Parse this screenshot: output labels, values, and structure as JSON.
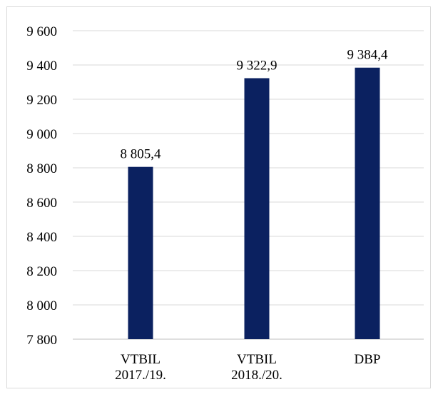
{
  "chart_data": {
    "type": "bar",
    "categories": [
      [
        "VTBIL",
        "2017./19."
      ],
      [
        "VTBIL",
        "2018./20."
      ],
      [
        "DBP"
      ]
    ],
    "values": [
      8805.4,
      9322.9,
      9384.4
    ],
    "data_labels": [
      "8 805,4",
      "9 322,9",
      "9 384,4"
    ],
    "ylim": [
      7800,
      9600
    ],
    "yticks": [
      7800,
      8000,
      8200,
      8400,
      8600,
      8800,
      9000,
      9200,
      9400,
      9600
    ],
    "ytick_labels": [
      "7 800",
      "8 000",
      "8 200",
      "8 400",
      "8 600",
      "8 800",
      "9 000",
      "9 200",
      "9 400",
      "9 600"
    ],
    "grid": true,
    "title": "",
    "xlabel": "",
    "ylabel": "",
    "bar_color": "#0b2160",
    "grid_color": "#d9d9d9"
  }
}
